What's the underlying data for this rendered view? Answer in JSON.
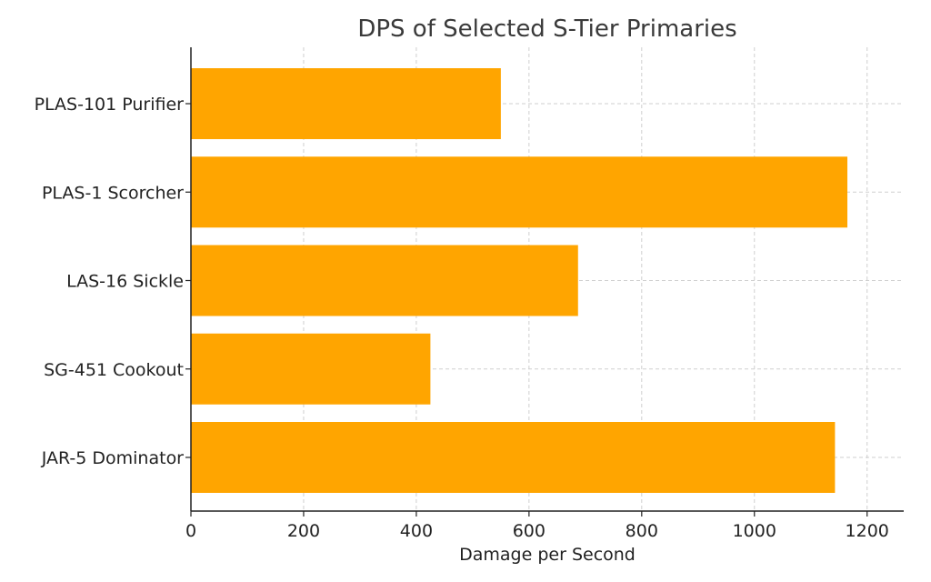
{
  "chart_data": {
    "type": "bar",
    "orientation": "horizontal",
    "title": "DPS of Selected S-Tier Primaries",
    "xlabel": "Damage per Second",
    "ylabel": "",
    "categories": [
      "PLAS-101 Purifier",
      "PLAS-1 Scorcher",
      "LAS-16 Sickle",
      "SG-451 Cookout",
      "JAR-5 Dominator"
    ],
    "values": [
      550,
      1165,
      687,
      425,
      1143
    ],
    "xlim": [
      0,
      1265
    ],
    "xticks": [
      0,
      200,
      400,
      600,
      800,
      1000,
      1200
    ],
    "grid": true,
    "bar_color": "#FFA500"
  }
}
